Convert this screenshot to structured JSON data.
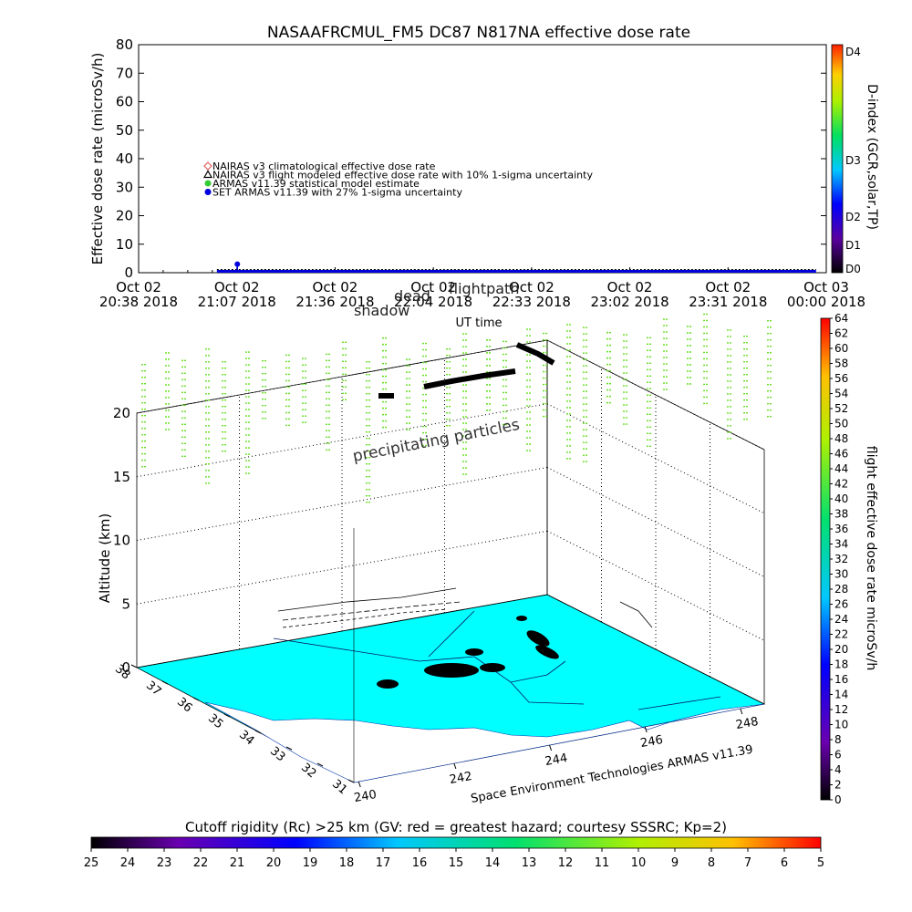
{
  "chart_data": [
    {
      "type": "scatter",
      "title": "NASAAFRCMUL_FM5 DC87 N817NA effective dose rate",
      "xlabel": "UT time",
      "ylabel": "Effective dose rate (microSv/h)",
      "ylim": [
        0,
        80
      ],
      "yticks": [
        0,
        10,
        20,
        30,
        40,
        50,
        60,
        70,
        80
      ],
      "x_ticks": [
        {
          "date": "Oct 02",
          "time": "20:38 2018"
        },
        {
          "date": "Oct 02",
          "time": "21:07 2018"
        },
        {
          "date": "Oct 02",
          "time": "21:36 2018"
        },
        {
          "date": "Oct 02",
          "time": "22:04 2018"
        },
        {
          "date": "Oct 02",
          "time": "22:33 2018"
        },
        {
          "date": "Oct 02",
          "time": "23:02 2018"
        },
        {
          "date": "Oct 02",
          "time": "23:31 2018"
        },
        {
          "date": "Oct 03",
          "time": "00:00 2018"
        }
      ],
      "legend": [
        {
          "name": "NAIRAS v3 climatological effective dose rate",
          "color": "#e06060",
          "marker": "diamond"
        },
        {
          "name": "NAIRAS v3 flight modeled effective dose rate with 10% 1-sigma uncertainty",
          "color": "#000000",
          "marker": "triangle"
        },
        {
          "name": "ARMAS v11.39 statistical model estimate",
          "color": "#33cc33",
          "marker": "circle"
        },
        {
          "name": "SET ARMAS v11.39 with 27% 1-sigma uncertainty",
          "color": "#0000dd",
          "marker": "circle"
        }
      ],
      "legend_position": "upper-left",
      "series": [
        {
          "name": "SET ARMAS v11.39 with 27% 1-sigma uncertainty",
          "x_start": "21:01",
          "x_end": "23:57",
          "typical_value": 0.5,
          "peak": {
            "x": "21:07",
            "y": 3
          }
        }
      ],
      "annotations": [
        "shadow",
        "dead",
        "flightpath"
      ],
      "d_index_colorbar": {
        "label": "D-index (GCR,solar,TP)",
        "ticks": [
          "D0",
          "D1",
          "D2",
          "D3",
          "D4"
        ]
      }
    },
    {
      "type": "scatter",
      "title": "",
      "zlabel": "Altitude (km)",
      "zticks": [
        0,
        5,
        10,
        15,
        20
      ],
      "lon_ticks": [
        240,
        242,
        244,
        246,
        248
      ],
      "lat_ticks": [
        31,
        32,
        33,
        34,
        35,
        36,
        37,
        38
      ],
      "annotations": [
        "precipitating particles",
        "Space Environment Technologies ARMAS v11.39"
      ],
      "dose_colorbar": {
        "label": "flight effective dose rate microSv/h",
        "range": [
          0,
          64
        ],
        "ticks": [
          0,
          2,
          4,
          6,
          8,
          10,
          12,
          14,
          16,
          18,
          20,
          22,
          24,
          26,
          28,
          30,
          32,
          34,
          36,
          38,
          40,
          42,
          44,
          46,
          48,
          50,
          52,
          54,
          56,
          58,
          60,
          62,
          64
        ]
      },
      "rc_colorbar": {
        "label": "Cutoff rigidity (Rc) >25 km (GV: red = greatest hazard; courtesy SSSRC; Kp=2)",
        "ticks": [
          25,
          24,
          23,
          22,
          21,
          20,
          19,
          18,
          17,
          16,
          15,
          14,
          13,
          12,
          11,
          10,
          9,
          8,
          7,
          6,
          5
        ]
      },
      "surface_color": "#00ffff",
      "particle_color": "#66dd22"
    }
  ]
}
